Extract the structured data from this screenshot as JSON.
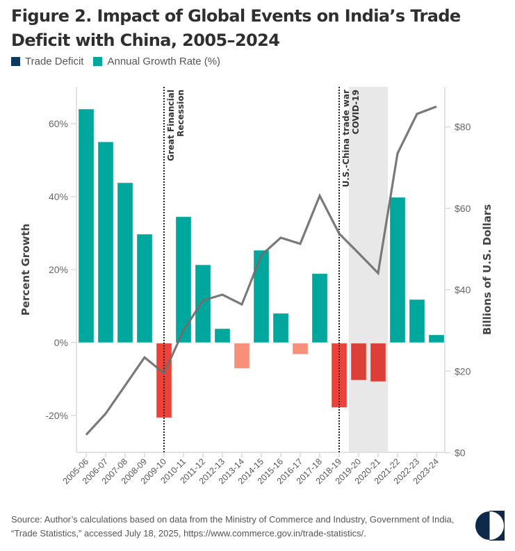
{
  "header": {
    "title": "Figure 2. Impact of Global Events on India’s Trade Deficit with China, 2005–2024"
  },
  "legend": [
    {
      "label": "Trade Deficit",
      "color": "#0E3A5F",
      "icon": "square-swatch"
    },
    {
      "label": "Annual Growth Rate (%)",
      "color": "#00A79D",
      "icon": "square-swatch"
    }
  ],
  "footer": {
    "source_line1": "Source: Author’s calculations based on data from the Ministry of Commerce and Industry, Government of India,",
    "source_line2": "“Trade Statistics,” accessed July 18, 2025, https://www.commerce.gov.in/trade-statistics/.",
    "logo_icon": "half-circle-logo",
    "logo_color": "#0E2A4A"
  },
  "colors": {
    "positive_bar": "#00A79D",
    "negative_bar_large": "#EE4137",
    "negative_bar_small": "#F7907A",
    "negative_bar_covid": "#DB3F37",
    "line": "#6E6E6E",
    "shade": "#E8E8E8",
    "axis": "#E2E2E2"
  },
  "chart_data": {
    "type": "bar",
    "title": "Figure 2. Impact of Global Events on India’s Trade Deficit with China, 2005–2024",
    "categories": [
      "2005-06",
      "2006-07",
      "2007-08",
      "2008-09",
      "2009-10",
      "2010-11",
      "2011-12",
      "2012-13",
      "2013-14",
      "2014-15",
      "2015-16",
      "2016-17",
      "2017-18",
      "2018-19",
      "2019-20",
      "2020-21",
      "2021-22",
      "2022-23",
      "2023-24"
    ],
    "series": [
      {
        "name": "Annual Growth Rate (%)",
        "type": "bar",
        "axis": "left",
        "values": [
          64.0,
          55.0,
          43.8,
          29.7,
          -20.4,
          34.5,
          21.3,
          3.8,
          -6.9,
          25.3,
          8.0,
          -3.0,
          18.9,
          -17.6,
          -10.1,
          -10.5,
          39.8,
          11.8,
          2.1
        ]
      },
      {
        "name": "Trade Deficit",
        "type": "line",
        "axis": "right",
        "unit": "Billions of U.S. Dollars",
        "values": [
          4.4,
          9.6,
          16.5,
          23.4,
          19.5,
          30.0,
          37.4,
          38.8,
          36.4,
          48.5,
          52.8,
          51.3,
          63.1,
          53.8,
          49.0,
          44.1,
          73.5,
          83.2,
          85.0
        ]
      }
    ],
    "ylabel": "Percent Growth",
    "ylim": [
      -30,
      70
    ],
    "yticks": [
      -20,
      0,
      20,
      40,
      60
    ],
    "ytick_labels": [
      "-20%",
      "0%",
      "20%",
      "40%",
      "60%"
    ],
    "y2label": "Billions of U.S. Dollars",
    "y2lim": [
      0,
      90
    ],
    "y2ticks": [
      0,
      20,
      40,
      60,
      80
    ],
    "y2tick_labels": [
      "$0",
      "$20",
      "$40",
      "$60",
      "$80"
    ],
    "annotations": [
      {
        "type": "vline",
        "category": "2009-10",
        "lines": [
          "Great Financial",
          "Recession"
        ]
      },
      {
        "type": "vline",
        "category": "2018-19",
        "lines": [
          "U.S.-China trade war",
          "COVID-19"
        ]
      },
      {
        "type": "shaded-region",
        "from": "2019-20",
        "to": "2020-21",
        "label": "COVID-19"
      }
    ],
    "legend_position": "top-left",
    "grid": false
  }
}
